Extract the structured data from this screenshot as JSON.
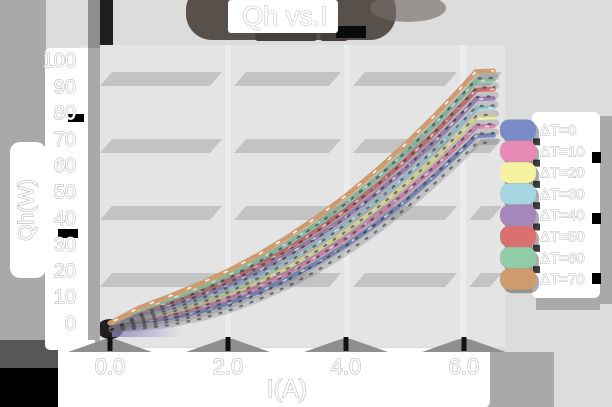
{
  "chart_data": {
    "type": "line",
    "title": "Qh vs.I",
    "xlabel": "I(A)",
    "ylabel": "Qh(W)",
    "xlim": [
      0,
      6.5
    ],
    "ylim": [
      0,
      100
    ],
    "grid": "horizontal-bands",
    "legend_position": "right",
    "x_ticks": {
      "labels": [
        "0.0",
        "2.0",
        "4.0",
        "6.0"
      ],
      "values": [
        0,
        2,
        4,
        6
      ]
    },
    "y_ticks": {
      "labels": [
        "0",
        "10",
        "20",
        "30",
        "40",
        "50",
        "60",
        "70",
        "80",
        "90",
        "100"
      ],
      "values": [
        0,
        10,
        20,
        30,
        40,
        50,
        60,
        70,
        80,
        90,
        100
      ]
    },
    "x": [
      0,
      0.5,
      1,
      1.5,
      2,
      2.5,
      3,
      3.5,
      4,
      4.5,
      5,
      5.5,
      6,
      6.2,
      6.5
    ],
    "series": [
      {
        "name": "ΔT=0",
        "color": "#7a8cc8",
        "values": [
          0,
          0.5,
          1.9,
          4.2,
          7.4,
          11.6,
          16.7,
          22.7,
          29.6,
          37.5,
          46.3,
          56.0,
          66.6,
          71.1,
          71.4
        ]
      },
      {
        "name": "ΔT=10",
        "color": "#e78ab5",
        "values": [
          0,
          1.3,
          3.1,
          5.7,
          9.2,
          13.6,
          19.0,
          25.2,
          32.3,
          40.4,
          49.4,
          59.3,
          70.0,
          74.6,
          74.9
        ]
      },
      {
        "name": "ΔT=20",
        "color": "#f5f2a0",
        "values": [
          0,
          2.0,
          4.2,
          7.2,
          11.0,
          15.7,
          21.2,
          27.7,
          35.0,
          43.3,
          52.5,
          62.5,
          73.5,
          78.1,
          78.4
        ]
      },
      {
        "name": "ΔT=30",
        "color": "#a5d5de",
        "values": [
          0,
          2.8,
          5.4,
          8.7,
          12.7,
          17.7,
          23.5,
          30.2,
          37.7,
          46.2,
          55.5,
          65.8,
          76.9,
          81.6,
          81.9
        ]
      },
      {
        "name": "ΔT=40",
        "color": "#a687bd",
        "values": [
          0,
          3.6,
          6.6,
          10.2,
          14.5,
          19.7,
          25.8,
          32.6,
          40.4,
          49.0,
          58.6,
          69.0,
          80.3,
          85.1,
          85.4
        ]
      },
      {
        "name": "ΔT=50",
        "color": "#da7070",
        "values": [
          0,
          4.4,
          7.7,
          11.7,
          16.3,
          21.8,
          28.0,
          35.1,
          43.0,
          51.9,
          61.7,
          72.3,
          83.8,
          88.6,
          88.9
        ]
      },
      {
        "name": "ΔT=60",
        "color": "#90cda6",
        "values": [
          0,
          5.1,
          8.9,
          13.2,
          18.1,
          23.8,
          30.3,
          37.6,
          45.7,
          54.8,
          64.8,
          75.5,
          87.2,
          92.1,
          92.4
        ]
      },
      {
        "name": "ΔT=70",
        "color": "#cf9a6c",
        "values": [
          0,
          5.9,
          10.1,
          14.7,
          19.8,
          25.8,
          32.6,
          40.1,
          48.4,
          57.7,
          67.8,
          78.8,
          90.6,
          95.6,
          95.9
        ]
      }
    ]
  },
  "style_colors": {
    "figure_bg": "#dcdcdc",
    "plot_bg": "#e4e4e4",
    "grid_band": "#c3c3c3",
    "shadow_gray": "#a9a9a9",
    "title_shadow": "#57504b",
    "sticker": "#ffffff"
  }
}
